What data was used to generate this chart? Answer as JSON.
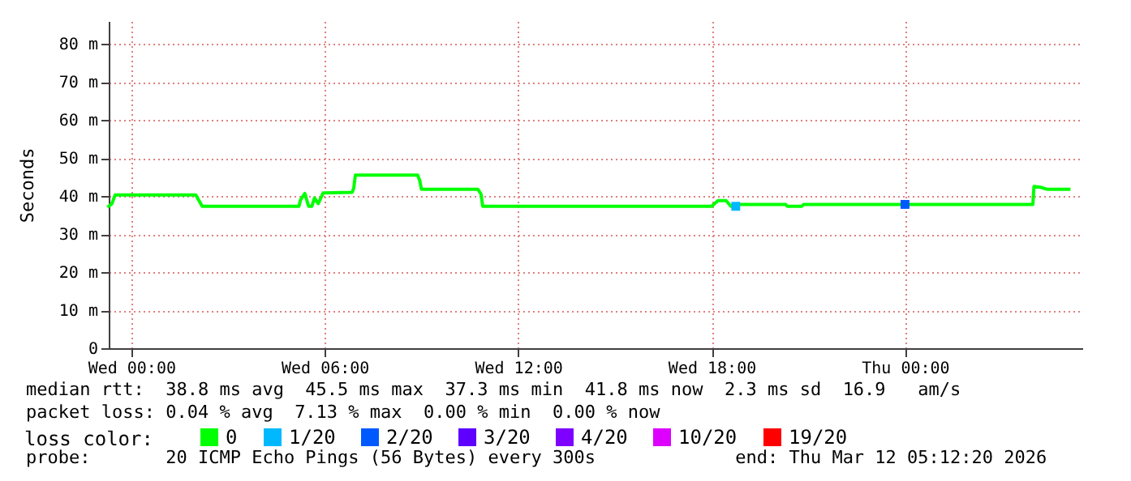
{
  "chart_data": {
    "type": "line",
    "ylabel": "Seconds",
    "legend_title": "loss color:",
    "legend": "bottom",
    "grid": true,
    "line_style": "solid",
    "marker": "none",
    "xlim": [
      "2026-03-10T23:18",
      "2026-03-12T05:30"
    ],
    "xticks": [
      {
        "value": "2026-03-11T00:00",
        "label": "Wed 00:00"
      },
      {
        "value": "2026-03-11T06:00",
        "label": "Wed 06:00"
      },
      {
        "value": "2026-03-11T12:00",
        "label": "Wed 12:00"
      },
      {
        "value": "2026-03-11T18:00",
        "label": "Wed 18:00"
      },
      {
        "value": "2026-03-12T00:00",
        "label": "Thu 00:00"
      }
    ],
    "ylim": [
      0,
      86
    ],
    "yticks": [
      0,
      {
        "value": 10,
        "label": "10 m"
      },
      {
        "value": 20,
        "label": "20 m"
      },
      {
        "value": 30,
        "label": "30 m"
      },
      {
        "value": 40,
        "label": "40 m"
      },
      {
        "value": 50,
        "label": "50 m"
      },
      {
        "value": 60,
        "label": "60 m"
      },
      {
        "value": 70,
        "label": "70 m"
      },
      {
        "value": 80,
        "label": "80 m"
      }
    ],
    "series": [
      {
        "name": "0",
        "color": "#00ff00",
        "x": [
          "2026-03-10T23:18",
          "2026-03-10T23:24",
          "2026-03-10T23:30",
          "2026-03-11T02:00",
          "2026-03-11T02:12",
          "2026-03-11T05:12",
          "2026-03-11T05:15",
          "2026-03-11T05:23",
          "2026-03-11T05:30",
          "2026-03-11T05:36",
          "2026-03-11T05:41",
          "2026-03-11T05:48",
          "2026-03-11T05:57",
          "2026-03-11T06:51",
          "2026-03-11T06:54",
          "2026-03-11T06:57",
          "2026-03-11T08:53",
          "2026-03-11T08:57",
          "2026-03-11T09:00",
          "2026-03-11T10:45",
          "2026-03-11T10:51",
          "2026-03-11T10:54",
          "2026-03-11T18:00",
          "2026-03-11T18:12",
          "2026-03-11T18:27",
          "2026-03-11T18:36",
          "2026-03-11T18:54",
          "2026-03-11T20:18",
          "2026-03-11T20:21",
          "2026-03-11T20:48",
          "2026-03-11T20:51",
          "2026-03-12T03:58",
          "2026-03-12T04:00",
          "2026-03-12T04:12",
          "2026-03-12T04:24",
          "2026-03-12T05:05"
        ],
        "values": [
          37.3,
          38,
          40.3,
          40.3,
          37.3,
          37.3,
          39,
          40.7,
          37.3,
          37.3,
          39.5,
          38,
          40.8,
          41,
          42,
          45.5,
          45.5,
          44,
          41.8,
          41.8,
          40.5,
          37.3,
          37.3,
          38.8,
          38.8,
          37.3,
          37.8,
          37.8,
          37.3,
          37.3,
          37.8,
          37.8,
          42.5,
          42.3,
          41.8,
          41.8
        ]
      },
      {
        "name": "1/20",
        "type": "scatter",
        "marker": "square",
        "color": "#00b8ff",
        "x": [
          "2026-03-11T18:45"
        ],
        "values": [
          37.3
        ]
      },
      {
        "name": "2/20",
        "type": "scatter",
        "marker": "square",
        "color": "#0059ff",
        "x": [
          "2026-03-12T00:00"
        ],
        "values": [
          37.8
        ]
      },
      {
        "name": "3/20",
        "color": "#5e00ff"
      },
      {
        "name": "4/20",
        "color": "#7e00ff"
      },
      {
        "name": "10/20",
        "color": "#dd00ff"
      },
      {
        "name": "19/20",
        "color": "#ff0000"
      }
    ],
    "annotations": [
      "median rtt:  38.8 ms avg  45.5 ms max  37.3 ms min  41.8 ms now  2.3 ms sd  16.9   am/s",
      "packet loss: 0.04 % avg  7.13 % max  0.00 % min  0.00 % now",
      "probe:       20 ICMP Echo Pings (56 Bytes) every 300s             end: Thu Mar 12 05:12:20 2026"
    ]
  }
}
